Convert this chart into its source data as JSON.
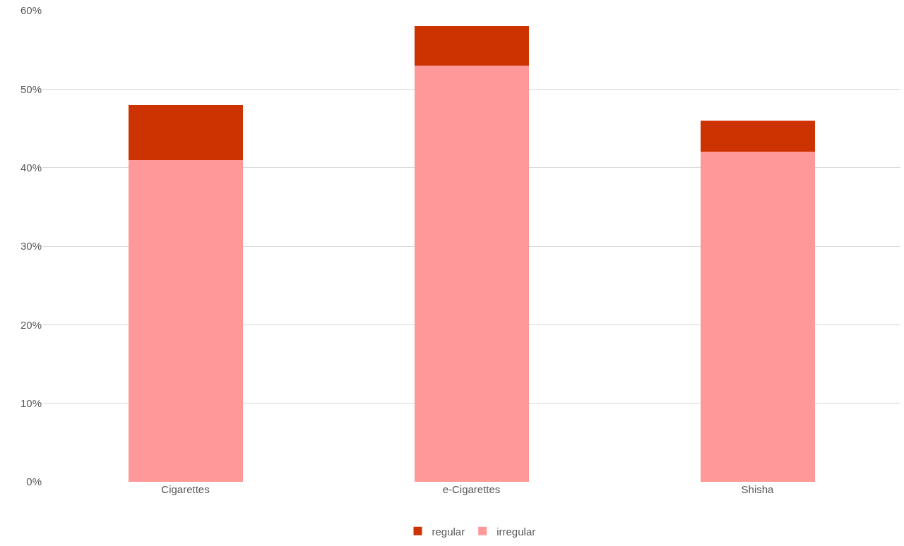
{
  "chart_data": {
    "type": "bar",
    "stacked": true,
    "categories": [
      "Cigarettes",
      "e-Cigarettes",
      "Shisha"
    ],
    "series": [
      {
        "name": "irregular",
        "color": "#ff9999",
        "values": [
          41,
          53,
          42
        ]
      },
      {
        "name": "regular",
        "color": "#cc3300",
        "values": [
          7,
          5,
          4
        ]
      }
    ],
    "ylim": [
      0,
      60
    ],
    "yticks": [
      {
        "value": 0,
        "label": "0%"
      },
      {
        "value": 10,
        "label": "10%"
      },
      {
        "value": 20,
        "label": "20%"
      },
      {
        "value": 30,
        "label": "30%"
      },
      {
        "value": 40,
        "label": "40%"
      },
      {
        "value": 50,
        "label": "50%"
      },
      {
        "value": 60,
        "label": "60%"
      }
    ],
    "grid": "y",
    "legend": "bottom"
  }
}
